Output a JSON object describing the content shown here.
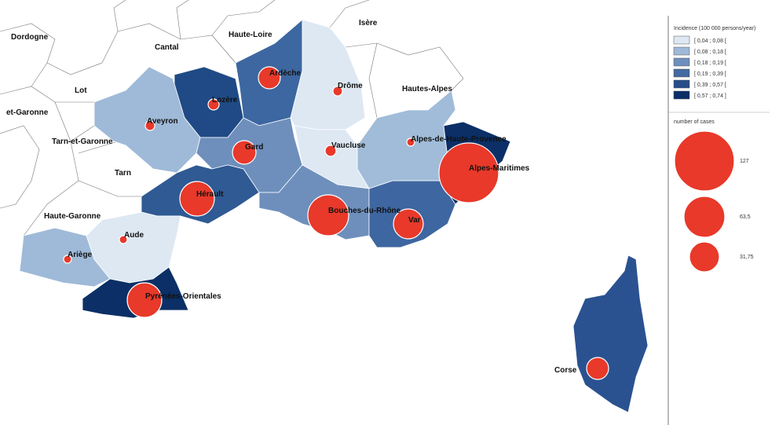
{
  "map": {
    "regions": [
      "Lozère",
      "Ardèche",
      "Drôme",
      "Aveyron",
      "Gard",
      "Vaucluse",
      "Hérault",
      "Bouches-du-Rhône",
      "Var",
      "Alpes-de-Haute-Provence",
      "Alpes-Maritimes",
      "Aude",
      "Ariège",
      "Pyrénées-Orientales",
      "Corse"
    ],
    "neighbors": [
      "Dordogne",
      "Cantal",
      "Haute-Loire",
      "Isère",
      "Lot",
      "et-Garonne",
      "Tarn-et-Garonne",
      "Tarn",
      "Haute-Garonne",
      "Hautes-Alpes"
    ]
  },
  "legend": {
    "incidence_title": "Incidence (100 000 persons/year)",
    "classes": [
      "[ 0,04 ; 0,08 [",
      "[ 0,08 ; 0,18 [",
      "[ 0,18 ; 0,19 [",
      "[ 0,19 ; 0,39 [",
      "[ 0,39 ; 0,57 [",
      "[ 0,57 ; 0,74 ]"
    ],
    "cases_title": "number of cases",
    "sizes": [
      "127",
      "63,5",
      "31,75"
    ]
  }
}
